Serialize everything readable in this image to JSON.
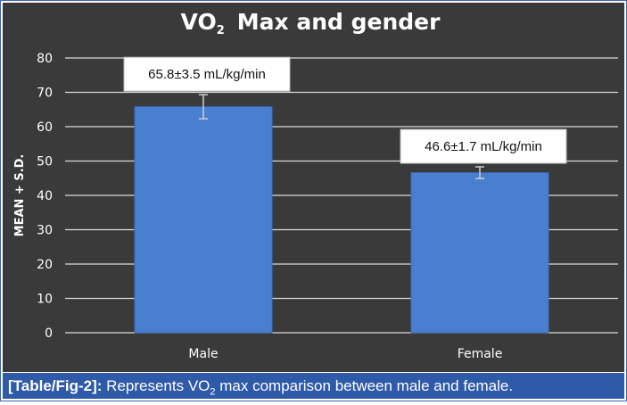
{
  "colors": {
    "background": "#3a3a3a",
    "gridline": "#d9d9d9",
    "bar": "#4a7fd0",
    "text": "#ffffff",
    "caption_bg": "#2e5aa8"
  },
  "caption": {
    "label": "[Table/Fig-2]:",
    "text_pre": " Represents VO",
    "text_sub": "2",
    "text_post": " max comparison between male and female."
  },
  "chart_data": {
    "type": "bar",
    "title_main": "VO",
    "title_sub": "2",
    "title_rest": "Max and gender",
    "xlabel": "",
    "ylabel": "MEAN + S.D.",
    "ylim": [
      0,
      80
    ],
    "yticks": [
      0,
      10,
      20,
      30,
      40,
      50,
      60,
      70,
      80
    ],
    "grid": true,
    "categories": [
      "Male",
      "Female"
    ],
    "values": [
      65.8,
      46.6
    ],
    "errors": [
      3.5,
      1.7
    ],
    "data_labels": [
      "65.8±3.5 mL/kg/min",
      "46.6±1.7 mL/kg/min"
    ]
  }
}
